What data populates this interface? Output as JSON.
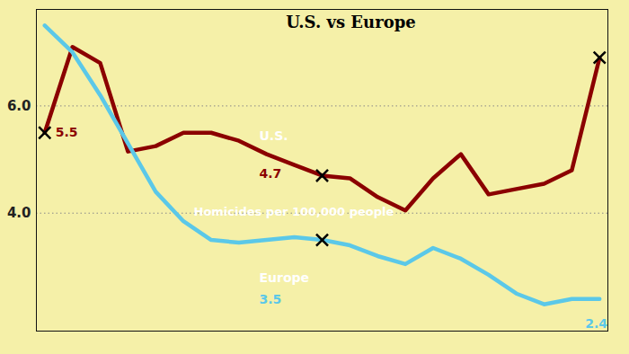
{
  "chart_data": {
    "type": "line",
    "title": "U.S. vs Europe",
    "subtitle": "Homicides per 100,000 people",
    "x": [
      0,
      1,
      2,
      3,
      4,
      5,
      6,
      7,
      8,
      9,
      10,
      11,
      12,
      13,
      14,
      15,
      16,
      17,
      18,
      19,
      20
    ],
    "series": [
      {
        "name": "U.S.",
        "color": "#8b0000",
        "marker": "x",
        "marker_x": [
          0,
          10,
          20
        ],
        "values": [
          5.5,
          7.1,
          6.8,
          5.15,
          5.25,
          5.5,
          5.5,
          5.35,
          5.1,
          4.9,
          4.7,
          4.65,
          4.3,
          4.05,
          4.65,
          5.1,
          4.35,
          4.45,
          4.55,
          4.8,
          6.9
        ]
      },
      {
        "name": "Europe",
        "color": "#5bc8e8",
        "marker": "x",
        "marker_x": [
          10
        ],
        "values": [
          7.5,
          7.0,
          6.2,
          5.3,
          4.4,
          3.85,
          3.5,
          3.45,
          3.5,
          3.55,
          3.5,
          3.4,
          3.2,
          3.05,
          3.35,
          3.15,
          2.85,
          2.5,
          2.3,
          2.4,
          2.4
        ]
      }
    ],
    "xlim": [
      -0.3,
      20.3
    ],
    "ylim": [
      1.8,
      7.8
    ],
    "yticks": [
      4,
      6
    ],
    "grid": true,
    "tick_labels": "y",
    "annotations": [
      {
        "text": "5.5",
        "series": "U.S.",
        "x": 0,
        "y": 5.5
      },
      {
        "text": "4.7",
        "series": "U.S.",
        "x": 10,
        "y": 4.7
      },
      {
        "text": "3.5",
        "series": "Europe",
        "x": 10,
        "y": 3.5
      },
      {
        "text": "2.4",
        "series": "Europe",
        "x": 20,
        "y": 2.4
      }
    ]
  }
}
